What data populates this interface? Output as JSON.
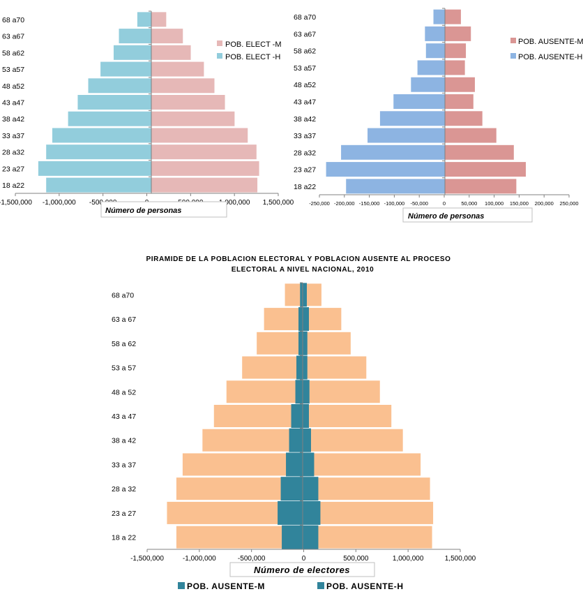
{
  "chart_data": [
    {
      "id": "chart1",
      "type": "bar",
      "orientation": "horizontal-pyramid",
      "categories": [
        "18 a22",
        "23 a27",
        "28 a32",
        "33 a37",
        "38 a42",
        "43 a47",
        "48 a52",
        "53 a57",
        "58 a62",
        "63 a67",
        "68 a70"
      ],
      "series": [
        {
          "name": "POB. ELECT -M",
          "side": "right",
          "color": "#e6b8b7",
          "values": [
            1210000,
            1230000,
            1200000,
            1100000,
            950000,
            840000,
            720000,
            600000,
            450000,
            360000,
            170000
          ]
        },
        {
          "name": "POB. ELECT -H",
          "side": "left",
          "color": "#92cddc",
          "values": [
            1200000,
            1290000,
            1200000,
            1130000,
            950000,
            840000,
            720000,
            580000,
            430000,
            370000,
            160000
          ]
        }
      ],
      "xlim": [
        -1500000,
        1500000
      ],
      "xticks": [
        "-1,500,000",
        "-1,000,000",
        "-500,000",
        "0",
        "500,000",
        "1,000,000",
        "1,500,000"
      ],
      "xlabel": "Número de personas",
      "legend": "right"
    },
    {
      "id": "chart2",
      "type": "bar",
      "orientation": "horizontal-pyramid",
      "categories": [
        "18 a22",
        "23 a27",
        "28 a32",
        "33 a37",
        "38 a42",
        "43 a47",
        "48 a52",
        "53 a57",
        "58 a62",
        "63 a67",
        "68 a70"
      ],
      "series": [
        {
          "name": "POB. AUSENTE-M",
          "side": "right",
          "color": "#da9694",
          "values": [
            143000,
            162000,
            138000,
            103000,
            75000,
            57000,
            60000,
            40000,
            42000,
            52000,
            32000
          ]
        },
        {
          "name": "POB. AUSENTE-H",
          "side": "left",
          "color": "#8db4e2",
          "values": [
            198000,
            238000,
            208000,
            155000,
            130000,
            103000,
            68000,
            55000,
            38000,
            40000,
            23000
          ]
        }
      ],
      "xlim": [
        -250000,
        250000
      ],
      "xticks": [
        "-250,000",
        "-200,000",
        "-150,000",
        "-100,000",
        "-50,000",
        "0",
        "50,000",
        "100,000",
        "150,000",
        "200,000",
        "250,000"
      ],
      "xlabel": "Número de personas",
      "legend": "right"
    },
    {
      "id": "chart3",
      "type": "bar",
      "orientation": "horizontal-pyramid-overlay",
      "title_line1": "PIRAMIDE DE LA POBLACION ELECTORAL Y POBLACION AUSENTE AL PROCESO",
      "title_line2": "ELECTORAL  A  NIVEL NACIONAL, 2010",
      "categories": [
        "18 a 22",
        "23 a 27",
        "28 a 32",
        "33 a 37",
        "38 a 42",
        "43 a 47",
        "48 a 52",
        "53 a 57",
        "58 a 62",
        "63 a 67",
        "68 a70"
      ],
      "background_series": {
        "color": "#fac090",
        "right": [
          1240000,
          1250000,
          1220000,
          1130000,
          960000,
          850000,
          740000,
          610000,
          460000,
          370000,
          180000
        ],
        "left": [
          1210000,
          1300000,
          1210000,
          1150000,
          960000,
          850000,
          730000,
          580000,
          440000,
          370000,
          170000
        ]
      },
      "series": [
        {
          "name": "POB. AUSENTE-M",
          "side": "right",
          "color": "#31849b",
          "values": [
            150000,
            170000,
            150000,
            110000,
            80000,
            60000,
            65000,
            45000,
            45000,
            60000,
            40000
          ]
        },
        {
          "name": "POB. AUSENTE-H",
          "side": "left",
          "color": "#31849b",
          "values": [
            200000,
            240000,
            210000,
            160000,
            130000,
            110000,
            70000,
            60000,
            40000,
            40000,
            25000
          ]
        }
      ],
      "xlim": [
        -1500000,
        1500000
      ],
      "xticks": [
        "-1,500,000",
        "-1,000,000",
        "-500,000",
        "0",
        "500,000",
        "1,000,000",
        "1,500,000"
      ],
      "xlabel": "Número de electores",
      "legend": "bottom"
    }
  ]
}
